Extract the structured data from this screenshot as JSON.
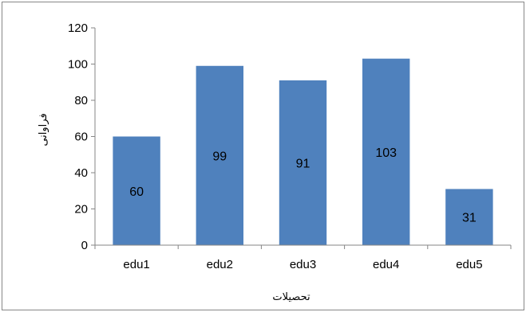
{
  "chart_data": {
    "type": "bar",
    "title": "",
    "xlabel": "تحصیلات",
    "ylabel": "فراوانی",
    "categories": [
      "edu1",
      "edu2",
      "edu3",
      "edu4",
      "edu5"
    ],
    "values": [
      60,
      99,
      91,
      103,
      31
    ],
    "data_labels": [
      "60",
      "99",
      "91",
      "103",
      "31"
    ],
    "ylim": [
      0,
      120
    ],
    "yticks": [
      0,
      20,
      40,
      60,
      80,
      100,
      120
    ],
    "grid": false,
    "legend": "none",
    "bar_color": "#4f81bd",
    "border_color": "#7f7f7f"
  }
}
